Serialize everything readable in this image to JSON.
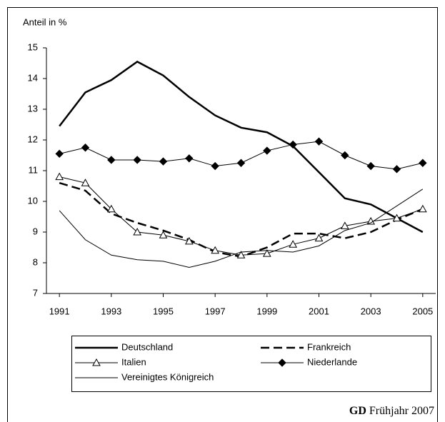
{
  "chart_data": {
    "type": "line",
    "y_axis_label": "Anteil in %",
    "x": [
      1991,
      1992,
      1993,
      1994,
      1995,
      1996,
      1997,
      1998,
      1999,
      2000,
      2001,
      2002,
      2003,
      2004,
      2005
    ],
    "xlim": [
      1990.5,
      2005.5
    ],
    "xticks": [
      1991,
      1993,
      1995,
      1997,
      1999,
      2001,
      2003,
      2005
    ],
    "ylim": [
      7,
      15
    ],
    "yticks": [
      7,
      8,
      9,
      10,
      11,
      12,
      13,
      14,
      15
    ],
    "grid": false,
    "series": [
      {
        "name": "Deutschland",
        "color": "#000000",
        "width": 2.5,
        "dash": "none",
        "marker": "none",
        "values": [
          12.45,
          13.55,
          13.95,
          14.55,
          14.1,
          13.4,
          12.8,
          12.4,
          12.25,
          11.8,
          10.95,
          10.1,
          9.9,
          9.45,
          9.0
        ]
      },
      {
        "name": "Frankreich",
        "color": "#000000",
        "width": 2.5,
        "dash": "12 6",
        "marker": "none",
        "values": [
          10.6,
          10.35,
          9.6,
          9.3,
          9.05,
          8.75,
          8.35,
          8.2,
          8.5,
          8.95,
          8.95,
          8.8,
          9.0,
          9.4,
          9.75
        ]
      },
      {
        "name": "Italien",
        "color": "#000000",
        "width": 1,
        "dash": "none",
        "marker": "triangle",
        "values": [
          10.8,
          10.6,
          9.75,
          9.0,
          8.9,
          8.7,
          8.4,
          8.25,
          8.3,
          8.6,
          8.8,
          9.2,
          9.35,
          9.45,
          9.75
        ]
      },
      {
        "name": "Niederlande",
        "color": "#000000",
        "width": 1,
        "dash": "none",
        "marker": "diamond",
        "values": [
          11.55,
          11.75,
          11.35,
          11.35,
          11.3,
          11.4,
          11.15,
          11.25,
          11.65,
          11.85,
          11.95,
          11.5,
          11.15,
          11.05,
          11.25
        ]
      },
      {
        "name": "Vereinigtes Königreich",
        "color": "#000000",
        "width": 1,
        "dash": "none",
        "marker": "none",
        "values": [
          9.7,
          8.75,
          8.25,
          8.1,
          8.05,
          7.85,
          8.05,
          8.35,
          8.4,
          8.35,
          8.55,
          9.05,
          9.3,
          9.85,
          10.4
        ]
      }
    ],
    "source_org": "GD",
    "source_date": "Frühjahr 2007"
  }
}
